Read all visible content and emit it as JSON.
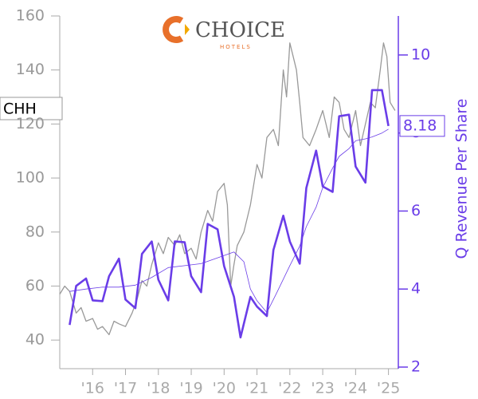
{
  "chart_data": {
    "type": "line",
    "logo_text": "CHOICE",
    "logo_subtext": "HOTELS",
    "y2_label": "Q Revenue Per Share",
    "xlim": [
      2015,
      2025.3
    ],
    "xticks": [
      {
        "value": 2016,
        "label": "'16"
      },
      {
        "value": 2017,
        "label": "'17"
      },
      {
        "value": 2018,
        "label": "'18"
      },
      {
        "value": 2019,
        "label": "'19"
      },
      {
        "value": 2020,
        "label": "'20"
      },
      {
        "value": 2021,
        "label": "'21"
      },
      {
        "value": 2022,
        "label": "'22"
      },
      {
        "value": 2023,
        "label": "'23"
      },
      {
        "value": 2024,
        "label": "'24"
      },
      {
        "value": 2025,
        "label": "'25"
      }
    ],
    "ylim": [
      30,
      160
    ],
    "yticks": [
      40,
      60,
      80,
      100,
      120,
      140,
      160
    ],
    "y2lim": [
      2,
      11
    ],
    "y2ticks": [
      2,
      4,
      6,
      8,
      10
    ],
    "series": [
      {
        "name": "CHH",
        "color": "#999999",
        "width": 1.3,
        "x": [
          2015.0,
          2015.15,
          2015.3,
          2015.5,
          2015.65,
          2015.8,
          2016.0,
          2016.15,
          2016.3,
          2016.5,
          2016.65,
          2016.8,
          2017.0,
          2017.2,
          2017.35,
          2017.5,
          2017.65,
          2017.8,
          2018.0,
          2018.15,
          2018.3,
          2018.5,
          2018.65,
          2018.8,
          2019.0,
          2019.15,
          2019.3,
          2019.5,
          2019.65,
          2019.8,
          2020.0,
          2020.1,
          2020.2,
          2020.3,
          2020.4,
          2020.6,
          2020.8,
          2021.0,
          2021.15,
          2021.3,
          2021.5,
          2021.65,
          2021.8,
          2021.9,
          2022.0,
          2022.1,
          2022.2,
          2022.3,
          2022.4,
          2022.6,
          2022.8,
          2023.0,
          2023.2,
          2023.35,
          2023.5,
          2023.65,
          2023.8,
          2024.0,
          2024.15,
          2024.3,
          2024.45,
          2024.6,
          2024.75,
          2024.85,
          2024.95,
          2025.05,
          2025.2
        ],
        "values": [
          57,
          60,
          58,
          50,
          52,
          47,
          48,
          44,
          45,
          42,
          47,
          46,
          45,
          50,
          55,
          62,
          60,
          68,
          76,
          72,
          78,
          75,
          79,
          72,
          74,
          70,
          80,
          88,
          84,
          95,
          98,
          90,
          60,
          68,
          75,
          80,
          90,
          105,
          100,
          115,
          118,
          112,
          140,
          130,
          150,
          145,
          140,
          128,
          115,
          112,
          118,
          125,
          115,
          130,
          128,
          118,
          115,
          125,
          112,
          120,
          128,
          126,
          140,
          150,
          145,
          128,
          125
        ]
      },
      {
        "color": "#6a3de8",
        "width": 0.8,
        "axis": "y2",
        "x": [
          2015.3,
          2015.8,
          2016.3,
          2016.8,
          2017.3,
          2017.8,
          2018.3,
          2018.8,
          2019.3,
          2019.8,
          2020.3,
          2020.6,
          2020.8,
          2021.0,
          2021.3,
          2021.6,
          2022.0,
          2022.3,
          2022.5,
          2022.8,
          2023.0,
          2023.3,
          2023.5,
          2023.8,
          2024.0,
          2024.3,
          2024.5,
          2024.8,
          2025.0
        ],
        "values": [
          3.94,
          4.0,
          4.05,
          4.05,
          4.1,
          4.3,
          4.55,
          4.6,
          4.65,
          4.8,
          4.95,
          4.7,
          4.0,
          3.7,
          3.4,
          3.9,
          4.6,
          5.1,
          5.6,
          6.1,
          6.6,
          7.1,
          7.4,
          7.6,
          7.8,
          7.85,
          7.9,
          8.0,
          8.1
        ]
      },
      {
        "color": "#6a3de8",
        "width": 2.6,
        "axis": "y2",
        "x": [
          2015.3,
          2015.5,
          2015.8,
          2016.0,
          2016.3,
          2016.5,
          2016.8,
          2017.0,
          2017.3,
          2017.5,
          2017.8,
          2018.0,
          2018.3,
          2018.5,
          2018.8,
          2019.0,
          2019.3,
          2019.5,
          2019.8,
          2020.0,
          2020.3,
          2020.5,
          2020.8,
          2021.0,
          2021.3,
          2021.5,
          2021.8,
          2022.0,
          2022.3,
          2022.5,
          2022.8,
          2023.0,
          2023.3,
          2023.5,
          2023.8,
          2024.0,
          2024.3,
          2024.5,
          2024.8,
          2025.0
        ],
        "values": [
          3.08,
          4.08,
          4.27,
          3.71,
          3.69,
          4.33,
          4.78,
          3.73,
          3.51,
          4.9,
          5.22,
          4.24,
          3.71,
          5.22,
          5.2,
          4.33,
          3.92,
          5.67,
          5.53,
          4.59,
          3.8,
          2.76,
          3.8,
          3.55,
          3.31,
          5.0,
          5.88,
          5.22,
          4.65,
          6.59,
          7.55,
          6.63,
          6.49,
          8.43,
          8.47,
          7.14,
          6.73,
          9.1,
          9.1,
          8.18
        ]
      }
    ]
  }
}
